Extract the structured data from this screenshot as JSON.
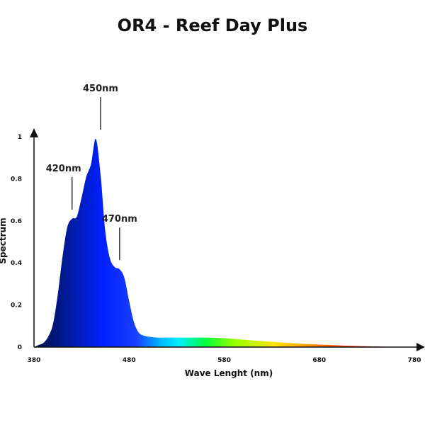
{
  "chart_data": {
    "type": "area",
    "title": "OR4 - Reef Day Plus",
    "xlabel": "Wave Lenght (nm)",
    "ylabel": "Spectrum",
    "xlim": [
      380,
      780
    ],
    "ylim": [
      0,
      1
    ],
    "x_ticks": [
      "380",
      "480",
      "580",
      "680",
      "780"
    ],
    "y_ticks": [
      "0",
      "0.2",
      "0.4",
      "0.6",
      "0.8",
      "1"
    ],
    "grid": false,
    "x": [
      380,
      385,
      390,
      395,
      400,
      405,
      410,
      415,
      420,
      425,
      430,
      435,
      440,
      445,
      450,
      455,
      460,
      465,
      470,
      475,
      480,
      485,
      490,
      495,
      500,
      510,
      520,
      540,
      560,
      580,
      600,
      620,
      640,
      660,
      680,
      700,
      720,
      740,
      760,
      780
    ],
    "y": [
      0.0,
      0.01,
      0.02,
      0.05,
      0.11,
      0.25,
      0.43,
      0.57,
      0.61,
      0.62,
      0.71,
      0.81,
      0.87,
      0.99,
      0.82,
      0.55,
      0.42,
      0.38,
      0.37,
      0.33,
      0.22,
      0.12,
      0.07,
      0.055,
      0.05,
      0.045,
      0.045,
      0.045,
      0.045,
      0.042,
      0.035,
      0.028,
      0.022,
      0.016,
      0.012,
      0.008,
      0.005,
      0.003,
      0.001,
      0.0
    ],
    "annotations": [
      {
        "text": "420nm",
        "x": 420,
        "y": 0.64
      },
      {
        "text": "450nm",
        "x": 450,
        "y": 1.02
      },
      {
        "text": "470nm",
        "x": 470,
        "y": 0.4
      }
    ],
    "colors": {
      "axis": "#111111",
      "spectrum_stops": [
        "#00104a",
        "#001a9a",
        "#0020ff",
        "#1a40ff",
        "#00b4ff",
        "#00f0ff",
        "#00ff40",
        "#8cff00",
        "#ffe600",
        "#ff9a00",
        "#ff2a00",
        "#c01800",
        "#ffffff"
      ]
    }
  }
}
